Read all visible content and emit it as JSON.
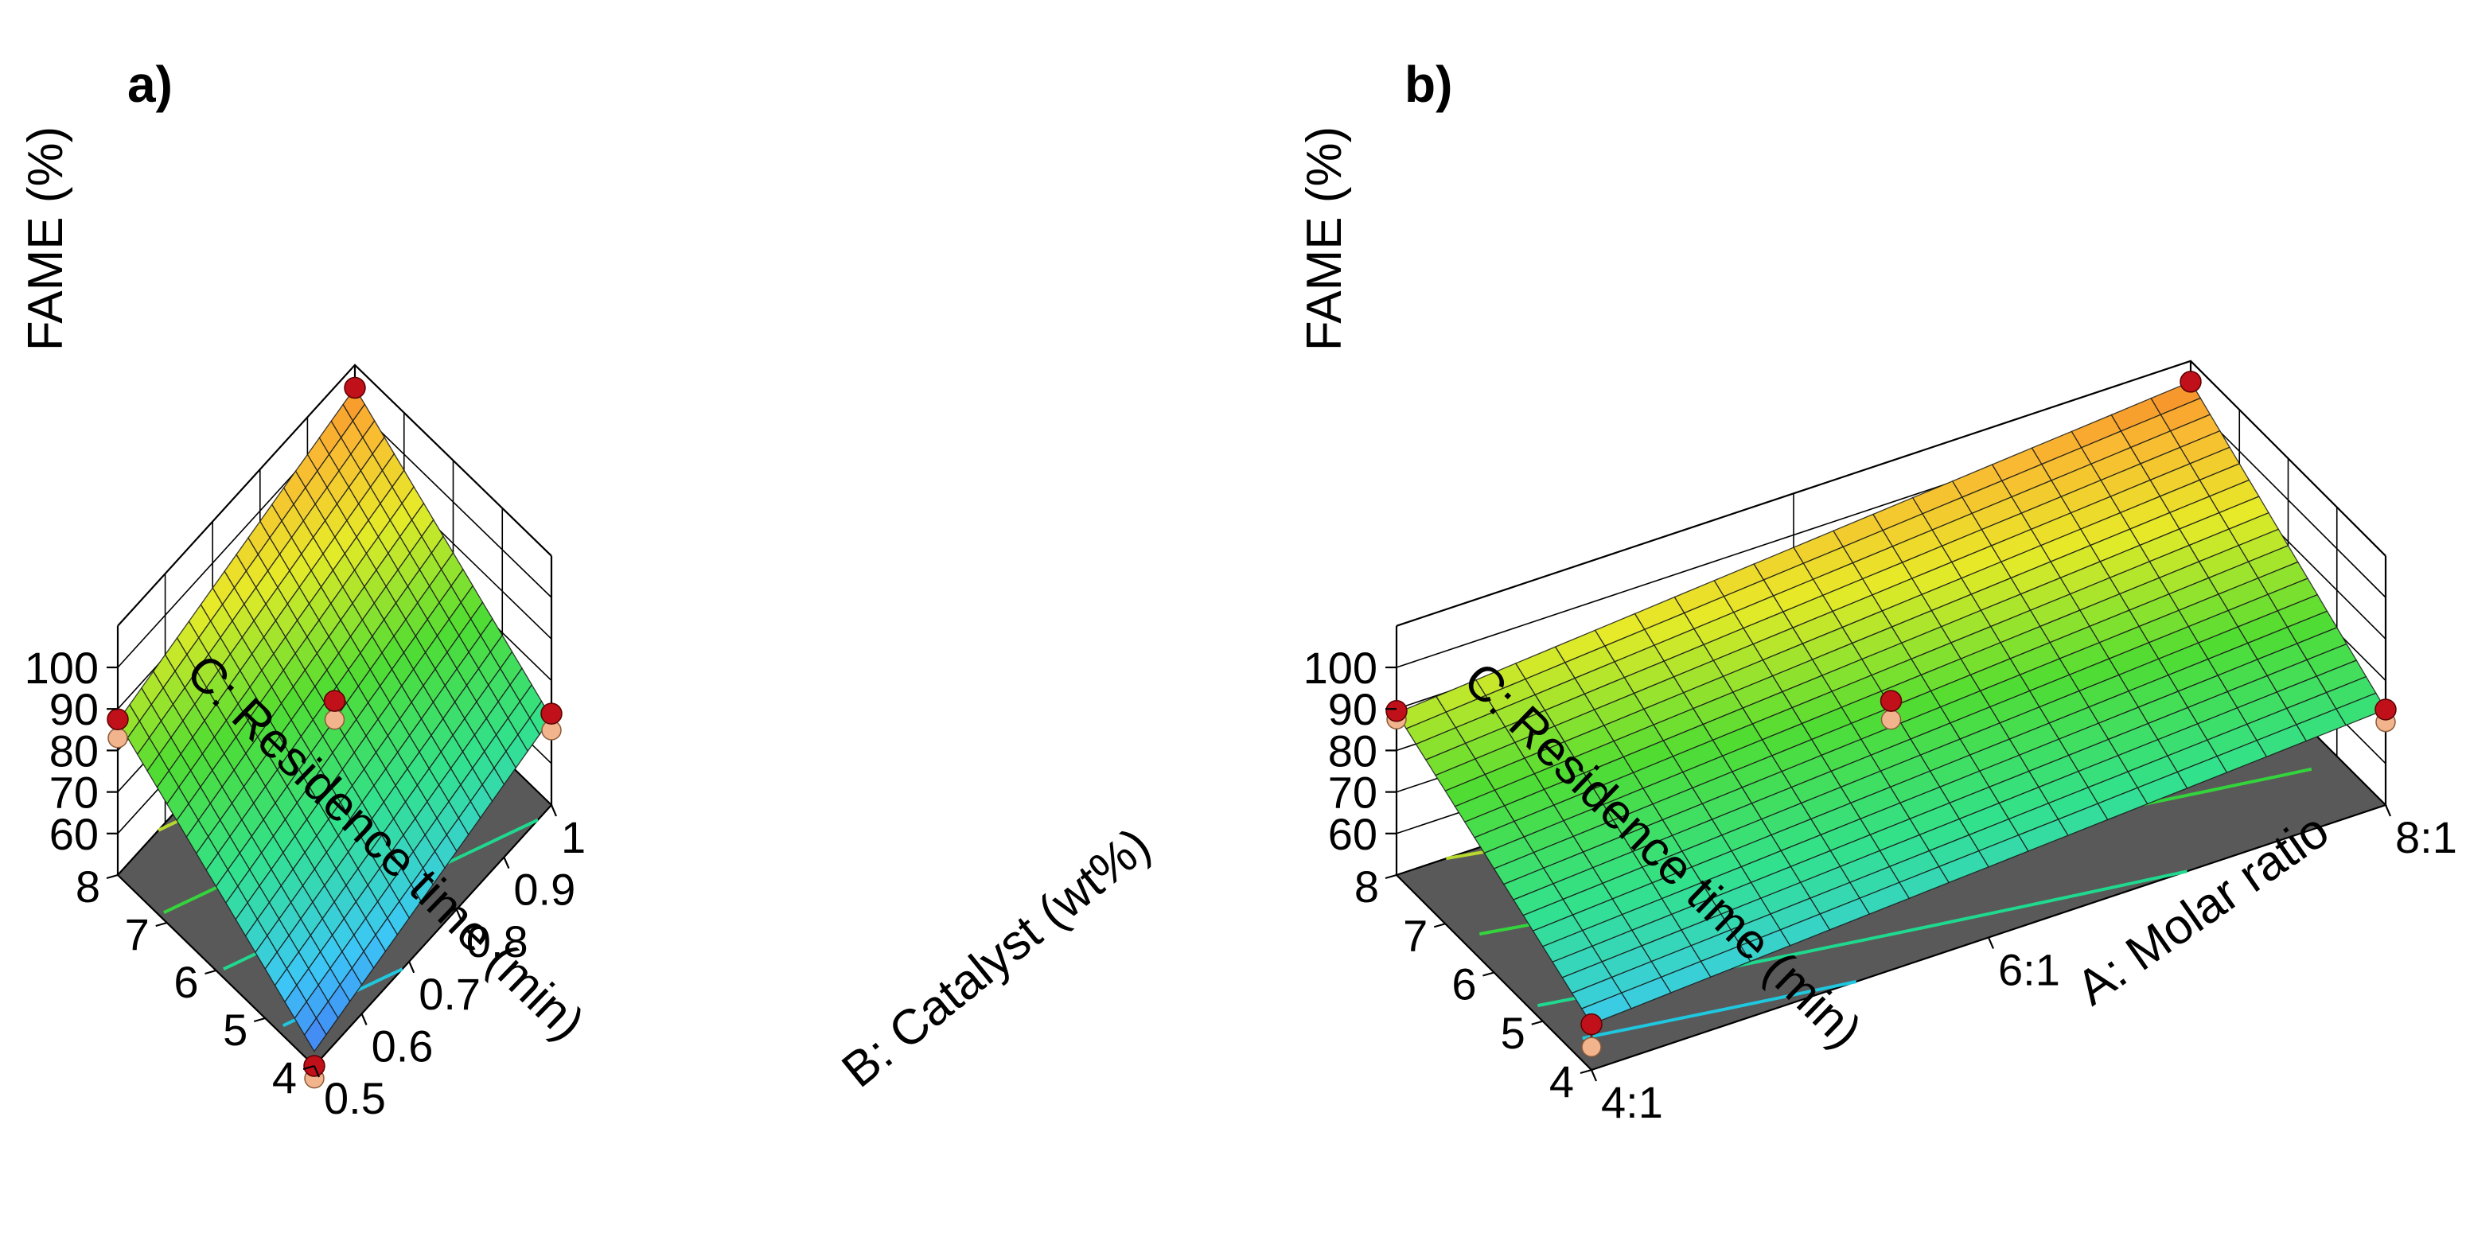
{
  "chart_data": [
    {
      "type": "surface3d",
      "panel_label": "a)",
      "zlabel": "FAME (%)",
      "xlabel": "C: Residence time (min)",
      "ylabel": "B: Catalyst (wt%)",
      "x_ticks": [
        "4",
        "5",
        "6",
        "7",
        "8"
      ],
      "y_ticks": [
        "0.5",
        "0.6",
        "0.7",
        "0.8",
        "0.9",
        "1"
      ],
      "z_ticks": [
        "60",
        "70",
        "80",
        "90",
        "100"
      ],
      "xlim": [
        4,
        8
      ],
      "ylim": [
        0.5,
        1.0
      ],
      "zlim": [
        50,
        110
      ],
      "surface_corners": [
        {
          "x": 4,
          "y": 0.5,
          "z": 53.5
        },
        {
          "x": 8,
          "y": 0.5,
          "z": 87
        },
        {
          "x": 8,
          "y": 1.0,
          "z": 104.5
        },
        {
          "x": 4,
          "y": 1.0,
          "z": 71
        }
      ],
      "contour_levels": [
        {
          "level": 60,
          "color": "#1fc7df"
        },
        {
          "level": 70,
          "color": "#1fd98f"
        },
        {
          "level": 80,
          "color": "#33d43c"
        },
        {
          "level": 90,
          "color": "#b7d82e"
        },
        {
          "level": 100,
          "color": "#e8c035"
        }
      ],
      "design_points": [
        {
          "x": 8,
          "y": 1.0,
          "actual": 104.5,
          "predicted": 104.5,
          "above": true
        },
        {
          "x": 8,
          "y": 0.5,
          "actual": 87.5,
          "predicted": 83,
          "above": true
        },
        {
          "x": 4,
          "y": 1.0,
          "actual": 72,
          "predicted": 68,
          "above": true
        },
        {
          "x": 4,
          "y": 0.5,
          "actual": 50,
          "predicted": 47,
          "above": false
        },
        {
          "x": 6,
          "y": 0.75,
          "actual": 83.5,
          "predicted": 79,
          "above": true
        }
      ]
    },
    {
      "type": "surface3d",
      "panel_label": "b)",
      "zlabel": "FAME (%)",
      "xlabel": "C: Residence time (min)",
      "ylabel": "A: Molar ratio",
      "x_ticks": [
        "4",
        "5",
        "6",
        "7",
        "8"
      ],
      "y_ticks": [
        "4:1",
        "6:1",
        "8:1"
      ],
      "z_ticks": [
        "60",
        "70",
        "80",
        "90",
        "100"
      ],
      "xlim": [
        4,
        8
      ],
      "ylim": [
        4,
        8
      ],
      "zlim": [
        50,
        110
      ],
      "surface_corners": [
        {
          "x": 4,
          "y": 4,
          "z": 61
        },
        {
          "x": 8,
          "y": 4,
          "z": 89
        },
        {
          "x": 8,
          "y": 8,
          "z": 105
        },
        {
          "x": 4,
          "y": 8,
          "z": 73
        }
      ],
      "contour_levels": [
        {
          "level": 65,
          "color": "#1fc7df"
        },
        {
          "level": 70,
          "color": "#1fd98f"
        },
        {
          "level": 80,
          "color": "#33d43c"
        },
        {
          "level": 90,
          "color": "#b7d82e"
        },
        {
          "level": 100,
          "color": "#e8c035"
        }
      ],
      "design_points": [
        {
          "x": 8,
          "y": 8,
          "actual": 105,
          "predicted": 105,
          "above": true
        },
        {
          "x": 8,
          "y": 4,
          "actual": 89.5,
          "predicted": 87.5,
          "above": true
        },
        {
          "x": 4,
          "y": 8,
          "actual": 73,
          "predicted": 70,
          "above": true
        },
        {
          "x": 4,
          "y": 4,
          "actual": 61,
          "predicted": 55.5,
          "above": true
        },
        {
          "x": 6,
          "y": 6,
          "actual": 83.5,
          "predicted": 79,
          "above": true
        }
      ]
    }
  ],
  "colors": {
    "floor": "#595959",
    "mesh": "#1a1a1a",
    "point_actual": "#c0101a",
    "point_predicted": "#f2b48c"
  }
}
